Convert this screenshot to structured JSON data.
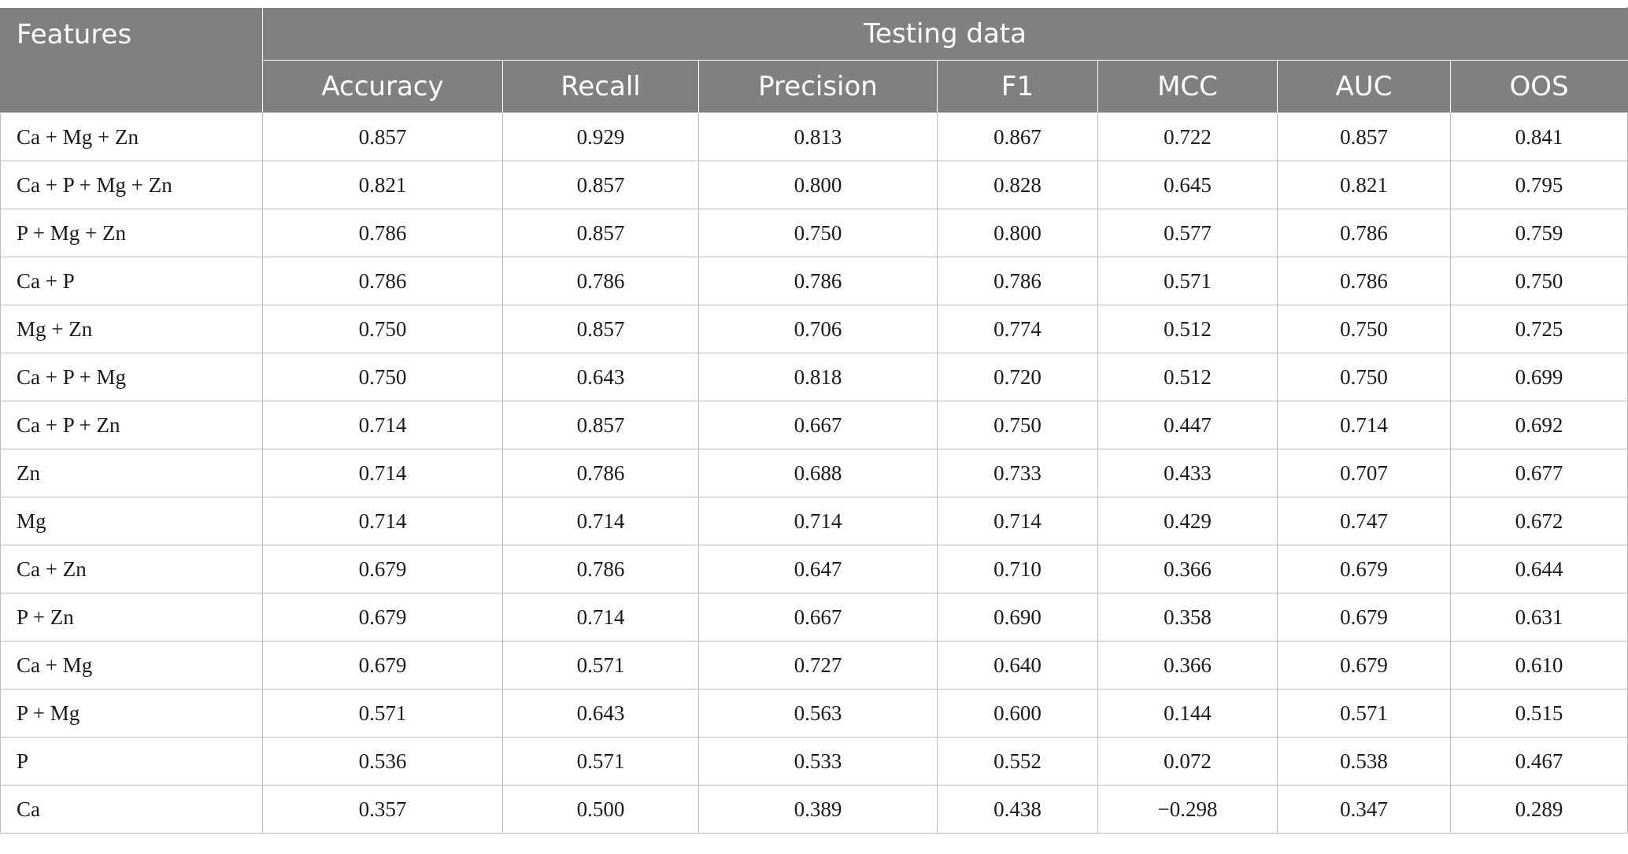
{
  "table": {
    "features_header": "Features",
    "group_header": "Testing data",
    "metric_headers": [
      "Accuracy",
      "Recall",
      "Precision",
      "F1",
      "MCC",
      "AUC",
      "OOS"
    ],
    "rows": [
      {
        "feature": "Ca + Mg + Zn",
        "values": [
          "0.857",
          "0.929",
          "0.813",
          "0.867",
          "0.722",
          "0.857",
          "0.841"
        ]
      },
      {
        "feature": "Ca + P + Mg + Zn",
        "values": [
          "0.821",
          "0.857",
          "0.800",
          "0.828",
          "0.645",
          "0.821",
          "0.795"
        ]
      },
      {
        "feature": "P + Mg + Zn",
        "values": [
          "0.786",
          "0.857",
          "0.750",
          "0.800",
          "0.577",
          "0.786",
          "0.759"
        ]
      },
      {
        "feature": "Ca + P",
        "values": [
          "0.786",
          "0.786",
          "0.786",
          "0.786",
          "0.571",
          "0.786",
          "0.750"
        ]
      },
      {
        "feature": "Mg + Zn",
        "values": [
          "0.750",
          "0.857",
          "0.706",
          "0.774",
          "0.512",
          "0.750",
          "0.725"
        ]
      },
      {
        "feature": "Ca + P + Mg",
        "values": [
          "0.750",
          "0.643",
          "0.818",
          "0.720",
          "0.512",
          "0.750",
          "0.699"
        ]
      },
      {
        "feature": "Ca + P + Zn",
        "values": [
          "0.714",
          "0.857",
          "0.667",
          "0.750",
          "0.447",
          "0.714",
          "0.692"
        ]
      },
      {
        "feature": "Zn",
        "values": [
          "0.714",
          "0.786",
          "0.688",
          "0.733",
          "0.433",
          "0.707",
          "0.677"
        ]
      },
      {
        "feature": "Mg",
        "values": [
          "0.714",
          "0.714",
          "0.714",
          "0.714",
          "0.429",
          "0.747",
          "0.672"
        ]
      },
      {
        "feature": "Ca + Zn",
        "values": [
          "0.679",
          "0.786",
          "0.647",
          "0.710",
          "0.366",
          "0.679",
          "0.644"
        ]
      },
      {
        "feature": "P + Zn",
        "values": [
          "0.679",
          "0.714",
          "0.667",
          "0.690",
          "0.358",
          "0.679",
          "0.631"
        ]
      },
      {
        "feature": "Ca + Mg",
        "values": [
          "0.679",
          "0.571",
          "0.727",
          "0.640",
          "0.366",
          "0.679",
          "0.610"
        ]
      },
      {
        "feature": "P + Mg",
        "values": [
          "0.571",
          "0.643",
          "0.563",
          "0.600",
          "0.144",
          "0.571",
          "0.515"
        ]
      },
      {
        "feature": "P",
        "values": [
          "0.536",
          "0.571",
          "0.533",
          "0.552",
          "0.072",
          "0.538",
          "0.467"
        ]
      },
      {
        "feature": "Ca",
        "values": [
          "0.357",
          "0.500",
          "0.389",
          "0.438",
          "−0.298",
          "0.347",
          "0.289"
        ]
      }
    ]
  }
}
